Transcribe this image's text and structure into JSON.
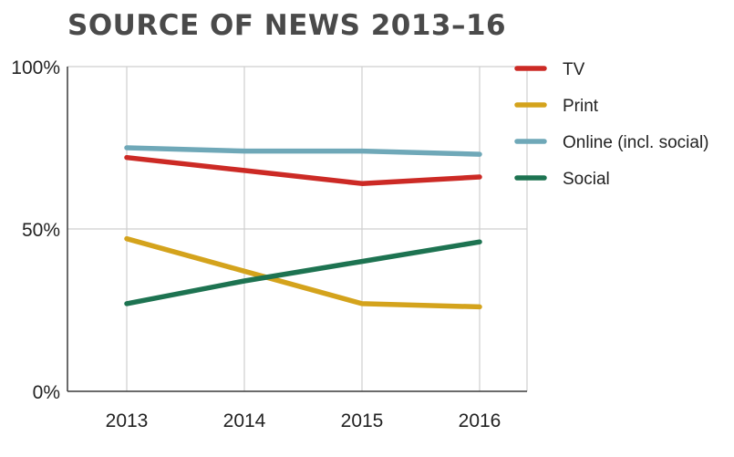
{
  "chart_data": {
    "type": "line",
    "title": "SOURCE OF NEWS 2013–16",
    "xlabel": "",
    "ylabel": "",
    "categories": [
      "2013",
      "2014",
      "2015",
      "2016"
    ],
    "ylim": [
      0,
      100
    ],
    "yticks": [
      0,
      50,
      100
    ],
    "ytick_labels": [
      "0%",
      "50%",
      "100%"
    ],
    "grid": "vertical lines at each year, horizontal line at 50%",
    "legend_position": "right",
    "series": [
      {
        "name": "TV",
        "color": "#cc2a25",
        "values": [
          72,
          68,
          64,
          66
        ]
      },
      {
        "name": "Print",
        "color": "#d4a31c",
        "values": [
          47,
          37,
          27,
          26
        ]
      },
      {
        "name": "Online (incl. social)",
        "color": "#6fa8b8",
        "values": [
          75,
          74,
          74,
          73
        ]
      },
      {
        "name": "Social",
        "color": "#1d7351",
        "values": [
          27,
          34,
          40,
          46
        ]
      }
    ]
  }
}
